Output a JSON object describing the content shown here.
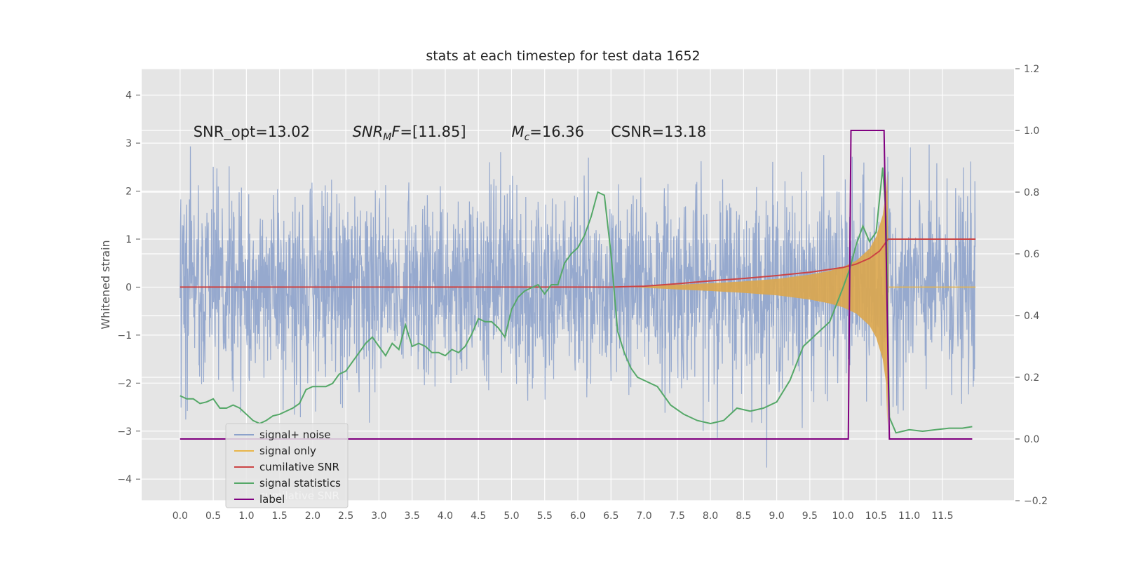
{
  "chart_data": {
    "type": "line",
    "title": "stats at each timestep for test data 1652",
    "xlabel": "",
    "ylabel": "Whitened strain",
    "ylabel_right": "",
    "xlim": [
      -0.58,
      12.58
    ],
    "ylim": [
      -4.45,
      4.55
    ],
    "ylim_right": [
      -0.2,
      1.2
    ],
    "x_ticks": [
      "0.0",
      "0.5",
      "1.0",
      "1.5",
      "2.0",
      "2.5",
      "3.0",
      "3.5",
      "4.0",
      "4.5",
      "5.0",
      "5.5",
      "6.0",
      "6.5",
      "7.0",
      "7.5",
      "8.0",
      "8.5",
      "9.0",
      "9.5",
      "10.0",
      "10.5",
      "11.0",
      "11.5"
    ],
    "y_ticks": [
      "4",
      "3",
      "2",
      "1",
      "0",
      "−1",
      "−2",
      "−3",
      "−4"
    ],
    "y_ticks_right": [
      "1.2",
      "1.0",
      "0.8",
      "0.6",
      "0.4",
      "0.2",
      "0.0",
      "−0.2"
    ],
    "grid": true,
    "legend_placement": "lower-left",
    "annotations": [
      {
        "text": "SNR_opt=13.02",
        "x": 0.2
      },
      {
        "text": "SNR_MF=[11.85]",
        "x": 2.6,
        "main": "SNR",
        "sub": "M",
        "rest": "F=[11.85]"
      },
      {
        "text": "M_c=16.36",
        "x": 5.0,
        "main": "M",
        "sub": "c",
        "rest": "=16.36"
      },
      {
        "text": "CSNR=13.18",
        "x": 6.5
      }
    ],
    "annotation_y": 3.25,
    "legend_ghost_text": "cumilative SNR",
    "series": [
      {
        "name": "signal+ noise",
        "color": "#8da2cb",
        "axis": "left",
        "noise_sigma": 1.0,
        "x_range": [
          0,
          12.0
        ]
      },
      {
        "name": "signal only",
        "color": "#e8b54a",
        "axis": "left",
        "fill_color": "#dca64c",
        "envelope": [
          [
            6.8,
            0.0
          ],
          [
            7.5,
            0.05
          ],
          [
            8.0,
            0.08
          ],
          [
            8.5,
            0.12
          ],
          [
            9.0,
            0.17
          ],
          [
            9.5,
            0.26
          ],
          [
            9.8,
            0.34
          ],
          [
            10.0,
            0.42
          ],
          [
            10.2,
            0.55
          ],
          [
            10.4,
            0.8
          ],
          [
            10.5,
            1.05
          ],
          [
            10.6,
            1.5
          ],
          [
            10.65,
            2.0
          ],
          [
            10.67,
            2.4
          ],
          [
            10.69,
            0.0
          ]
        ]
      },
      {
        "name": "cumilative SNR",
        "color": "#cc4444",
        "axis": "left",
        "x": [
          0.0,
          6.5,
          7.0,
          7.5,
          8.0,
          8.5,
          9.0,
          9.5,
          10.0,
          10.2,
          10.4,
          10.55,
          10.63,
          10.68,
          12.0
        ],
        "y": [
          0.0,
          0.0,
          0.02,
          0.07,
          0.13,
          0.18,
          0.24,
          0.31,
          0.41,
          0.48,
          0.6,
          0.75,
          0.9,
          1.0,
          1.0
        ]
      },
      {
        "name": "signal statistics",
        "color": "#55a868",
        "axis": "right",
        "x": [
          0.0,
          0.1,
          0.2,
          0.3,
          0.4,
          0.5,
          0.6,
          0.7,
          0.8,
          0.9,
          1.0,
          1.1,
          1.2,
          1.3,
          1.4,
          1.5,
          1.6,
          1.7,
          1.8,
          1.9,
          2.0,
          2.1,
          2.2,
          2.3,
          2.4,
          2.5,
          2.6,
          2.7,
          2.8,
          2.9,
          3.0,
          3.1,
          3.2,
          3.3,
          3.4,
          3.5,
          3.6,
          3.7,
          3.8,
          3.9,
          4.0,
          4.1,
          4.2,
          4.3,
          4.4,
          4.5,
          4.6,
          4.7,
          4.8,
          4.9,
          5.0,
          5.1,
          5.2,
          5.3,
          5.4,
          5.5,
          5.6,
          5.7,
          5.8,
          5.9,
          6.0,
          6.1,
          6.2,
          6.3,
          6.4,
          6.5,
          6.6,
          6.7,
          6.8,
          6.9,
          7.0,
          7.2,
          7.4,
          7.6,
          7.8,
          8.0,
          8.2,
          8.4,
          8.6,
          8.8,
          9.0,
          9.2,
          9.4,
          9.6,
          9.8,
          10.0,
          10.1,
          10.2,
          10.3,
          10.4,
          10.5,
          10.6,
          10.65,
          10.7,
          10.8,
          10.9,
          11.0,
          11.2,
          11.4,
          11.6,
          11.8,
          11.95
        ],
        "y": [
          0.14,
          0.13,
          0.13,
          0.115,
          0.12,
          0.13,
          0.1,
          0.1,
          0.11,
          0.1,
          0.08,
          0.06,
          0.05,
          0.06,
          0.075,
          0.08,
          0.09,
          0.1,
          0.115,
          0.16,
          0.17,
          0.17,
          0.17,
          0.18,
          0.21,
          0.22,
          0.25,
          0.28,
          0.31,
          0.33,
          0.3,
          0.27,
          0.31,
          0.29,
          0.37,
          0.3,
          0.31,
          0.3,
          0.28,
          0.28,
          0.27,
          0.29,
          0.28,
          0.3,
          0.34,
          0.39,
          0.38,
          0.38,
          0.36,
          0.33,
          0.42,
          0.46,
          0.48,
          0.49,
          0.5,
          0.47,
          0.5,
          0.5,
          0.57,
          0.6,
          0.62,
          0.66,
          0.72,
          0.8,
          0.79,
          0.6,
          0.35,
          0.28,
          0.23,
          0.2,
          0.19,
          0.17,
          0.11,
          0.08,
          0.06,
          0.05,
          0.06,
          0.1,
          0.09,
          0.1,
          0.12,
          0.19,
          0.3,
          0.34,
          0.38,
          0.49,
          0.55,
          0.63,
          0.69,
          0.64,
          0.67,
          0.88,
          0.72,
          0.07,
          0.02,
          0.025,
          0.03,
          0.025,
          0.03,
          0.035,
          0.035,
          0.04
        ]
      },
      {
        "name": "label",
        "color": "#800080",
        "axis": "right",
        "x": [
          0.0,
          10.08,
          10.12,
          10.58,
          10.62,
          10.7,
          11.95
        ],
        "y": [
          0.0,
          0.0,
          1.0,
          1.0,
          1.0,
          0.0,
          0.0
        ]
      }
    ]
  }
}
